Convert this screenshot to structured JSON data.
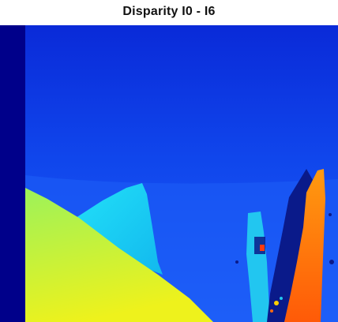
{
  "figure": {
    "title": "Disparity I0 - I6"
  },
  "colormap": {
    "name": "jet",
    "stops": [
      "#000080",
      "#0000ff",
      "#0080ff",
      "#00ffff",
      "#80ff80",
      "#ffff00",
      "#ff8000",
      "#ff0000",
      "#800000"
    ]
  },
  "palette": {
    "border_invalid": "#00008a",
    "background_top": "#0a2ad8",
    "background_mid": "#1046ec",
    "ground": "#1e5ef8",
    "cyan_hill": "#19d2f2",
    "ground_wedge_top": "#9cf25a",
    "ground_wedge_bottom": "#eef21c",
    "right_post": "#ff6a10",
    "thin_post": "#22c6f0",
    "occlusion_dark": "#0a1a8a"
  }
}
